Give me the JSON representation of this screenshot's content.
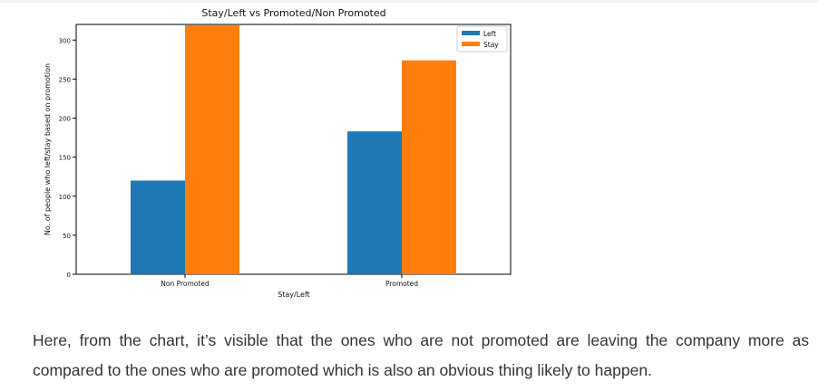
{
  "chart_data": {
    "type": "bar",
    "title": "Stay/Left vs Promoted/Non Promoted",
    "xlabel": "Stay/Left",
    "ylabel": "No. of people who left/stay based on promotion",
    "categories": [
      "Non Promoted",
      "Promoted"
    ],
    "series": [
      {
        "name": "Left",
        "color": "#1f77b4",
        "values": [
          120,
          183
        ]
      },
      {
        "name": "Stay",
        "color": "#ff7f0e",
        "values": [
          319,
          274
        ]
      }
    ],
    "yticks": [
      0,
      50,
      100,
      150,
      200,
      250,
      300
    ],
    "ylim": [
      0,
      320
    ],
    "legend_position": "top-right",
    "grid": false
  },
  "caption": "Here, from the chart, it’s visible that the ones who are not promoted are leaving the company more as compared to the ones who are promoted which is also an obvious thing likely to happen."
}
